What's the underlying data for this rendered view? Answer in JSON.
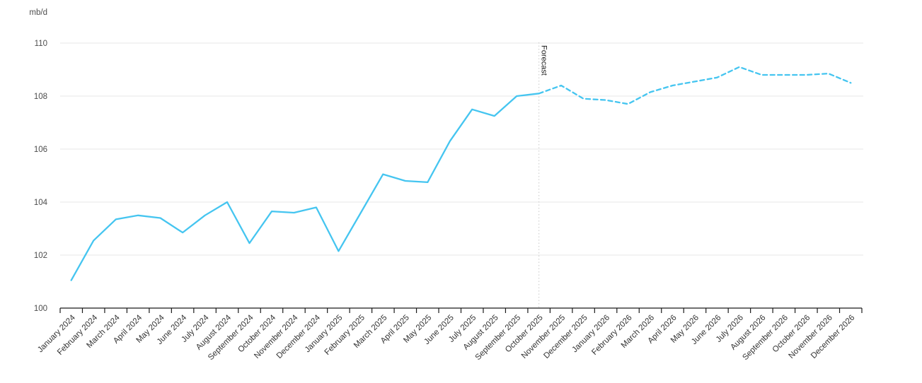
{
  "colors": {
    "line": "#45C5F0",
    "grid": "#e7e7e7",
    "axis": "#1a1a1a",
    "tick_label": "#4d4d4d",
    "x_label": "#333333",
    "forecast_divider": "#c9c9c9",
    "forecast_text": "#1a1a1a"
  },
  "chart_data": {
    "type": "line",
    "title": "",
    "unit": "mb/d",
    "ylabel": "mb/d",
    "xlabel": "",
    "ylim": [
      100,
      110
    ],
    "yticks": [
      100,
      102,
      104,
      106,
      108,
      110
    ],
    "grid": true,
    "legend": "none",
    "line_color": "#45C5F0",
    "forecast_annotation": "Forecast",
    "forecast_start_index": 21,
    "x": [
      "January 2024",
      "February 2024",
      "March 2024",
      "April 2024",
      "May 2024",
      "June 2024",
      "July 2024",
      "August 2024",
      "September 2024",
      "October 2024",
      "November 2024",
      "December 2024",
      "January 2025",
      "February 2025",
      "March 2025",
      "April 2025",
      "May 2025",
      "June 2025",
      "July 2025",
      "August 2025",
      "September 2025",
      "October 2025",
      "November 2025",
      "December 2025",
      "January 2026",
      "February 2026",
      "March 2026",
      "April 2026",
      "May 2026",
      "June 2026",
      "July 2026",
      "August 2026",
      "September 2026",
      "October 2026",
      "November 2026",
      "December 2026"
    ],
    "values": [
      101.05,
      102.55,
      103.35,
      103.5,
      103.4,
      102.85,
      103.5,
      104.0,
      102.45,
      103.65,
      103.6,
      103.8,
      102.15,
      103.6,
      105.05,
      104.8,
      104.75,
      106.3,
      107.5,
      107.25,
      108.0,
      108.1,
      108.4,
      107.9,
      107.85,
      107.7,
      108.15,
      108.4,
      108.55,
      108.7,
      109.1,
      108.8,
      108.8,
      108.8,
      108.85,
      108.5
    ]
  }
}
